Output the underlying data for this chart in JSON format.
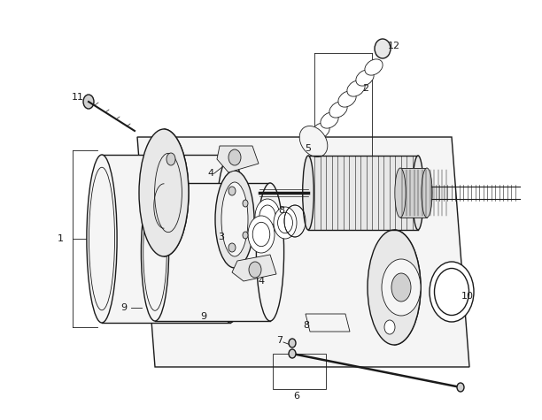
{
  "bg_color": "#ffffff",
  "lc": "#1a1a1a",
  "lw": 1.0,
  "tlw": 0.6,
  "fig_w": 6.12,
  "fig_h": 4.75,
  "fc_light": "#f5f5f5",
  "fc_mid": "#e8e8e8",
  "fc_dark": "#d0d0d0"
}
